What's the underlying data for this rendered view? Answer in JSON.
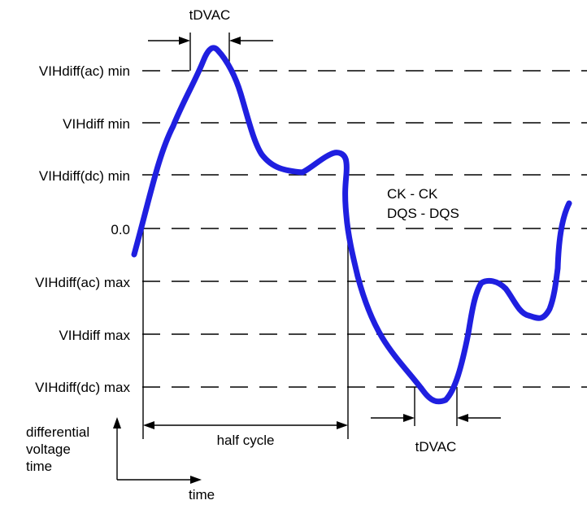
{
  "diagram": {
    "levels": [
      "VIHdiff(ac) min",
      "VIHdiff min",
      "VIHdiff(dc) min",
      "0.0",
      "VIHdiff(ac) max",
      "VIHdiff max",
      "VIHdiff(dc) max"
    ],
    "tdvac_top_label": "tDVAC",
    "tdvac_bottom_label": "tDVAC",
    "half_cycle_label": "half cycle",
    "signal_label_1": "CK - CK",
    "signal_label_2": "DQS - DQS",
    "y_axis_label_1": "differential",
    "y_axis_label_2": "voltage",
    "y_axis_label_3": "time",
    "x_axis_label": "time",
    "waveform_color": "#1f1fe0"
  }
}
